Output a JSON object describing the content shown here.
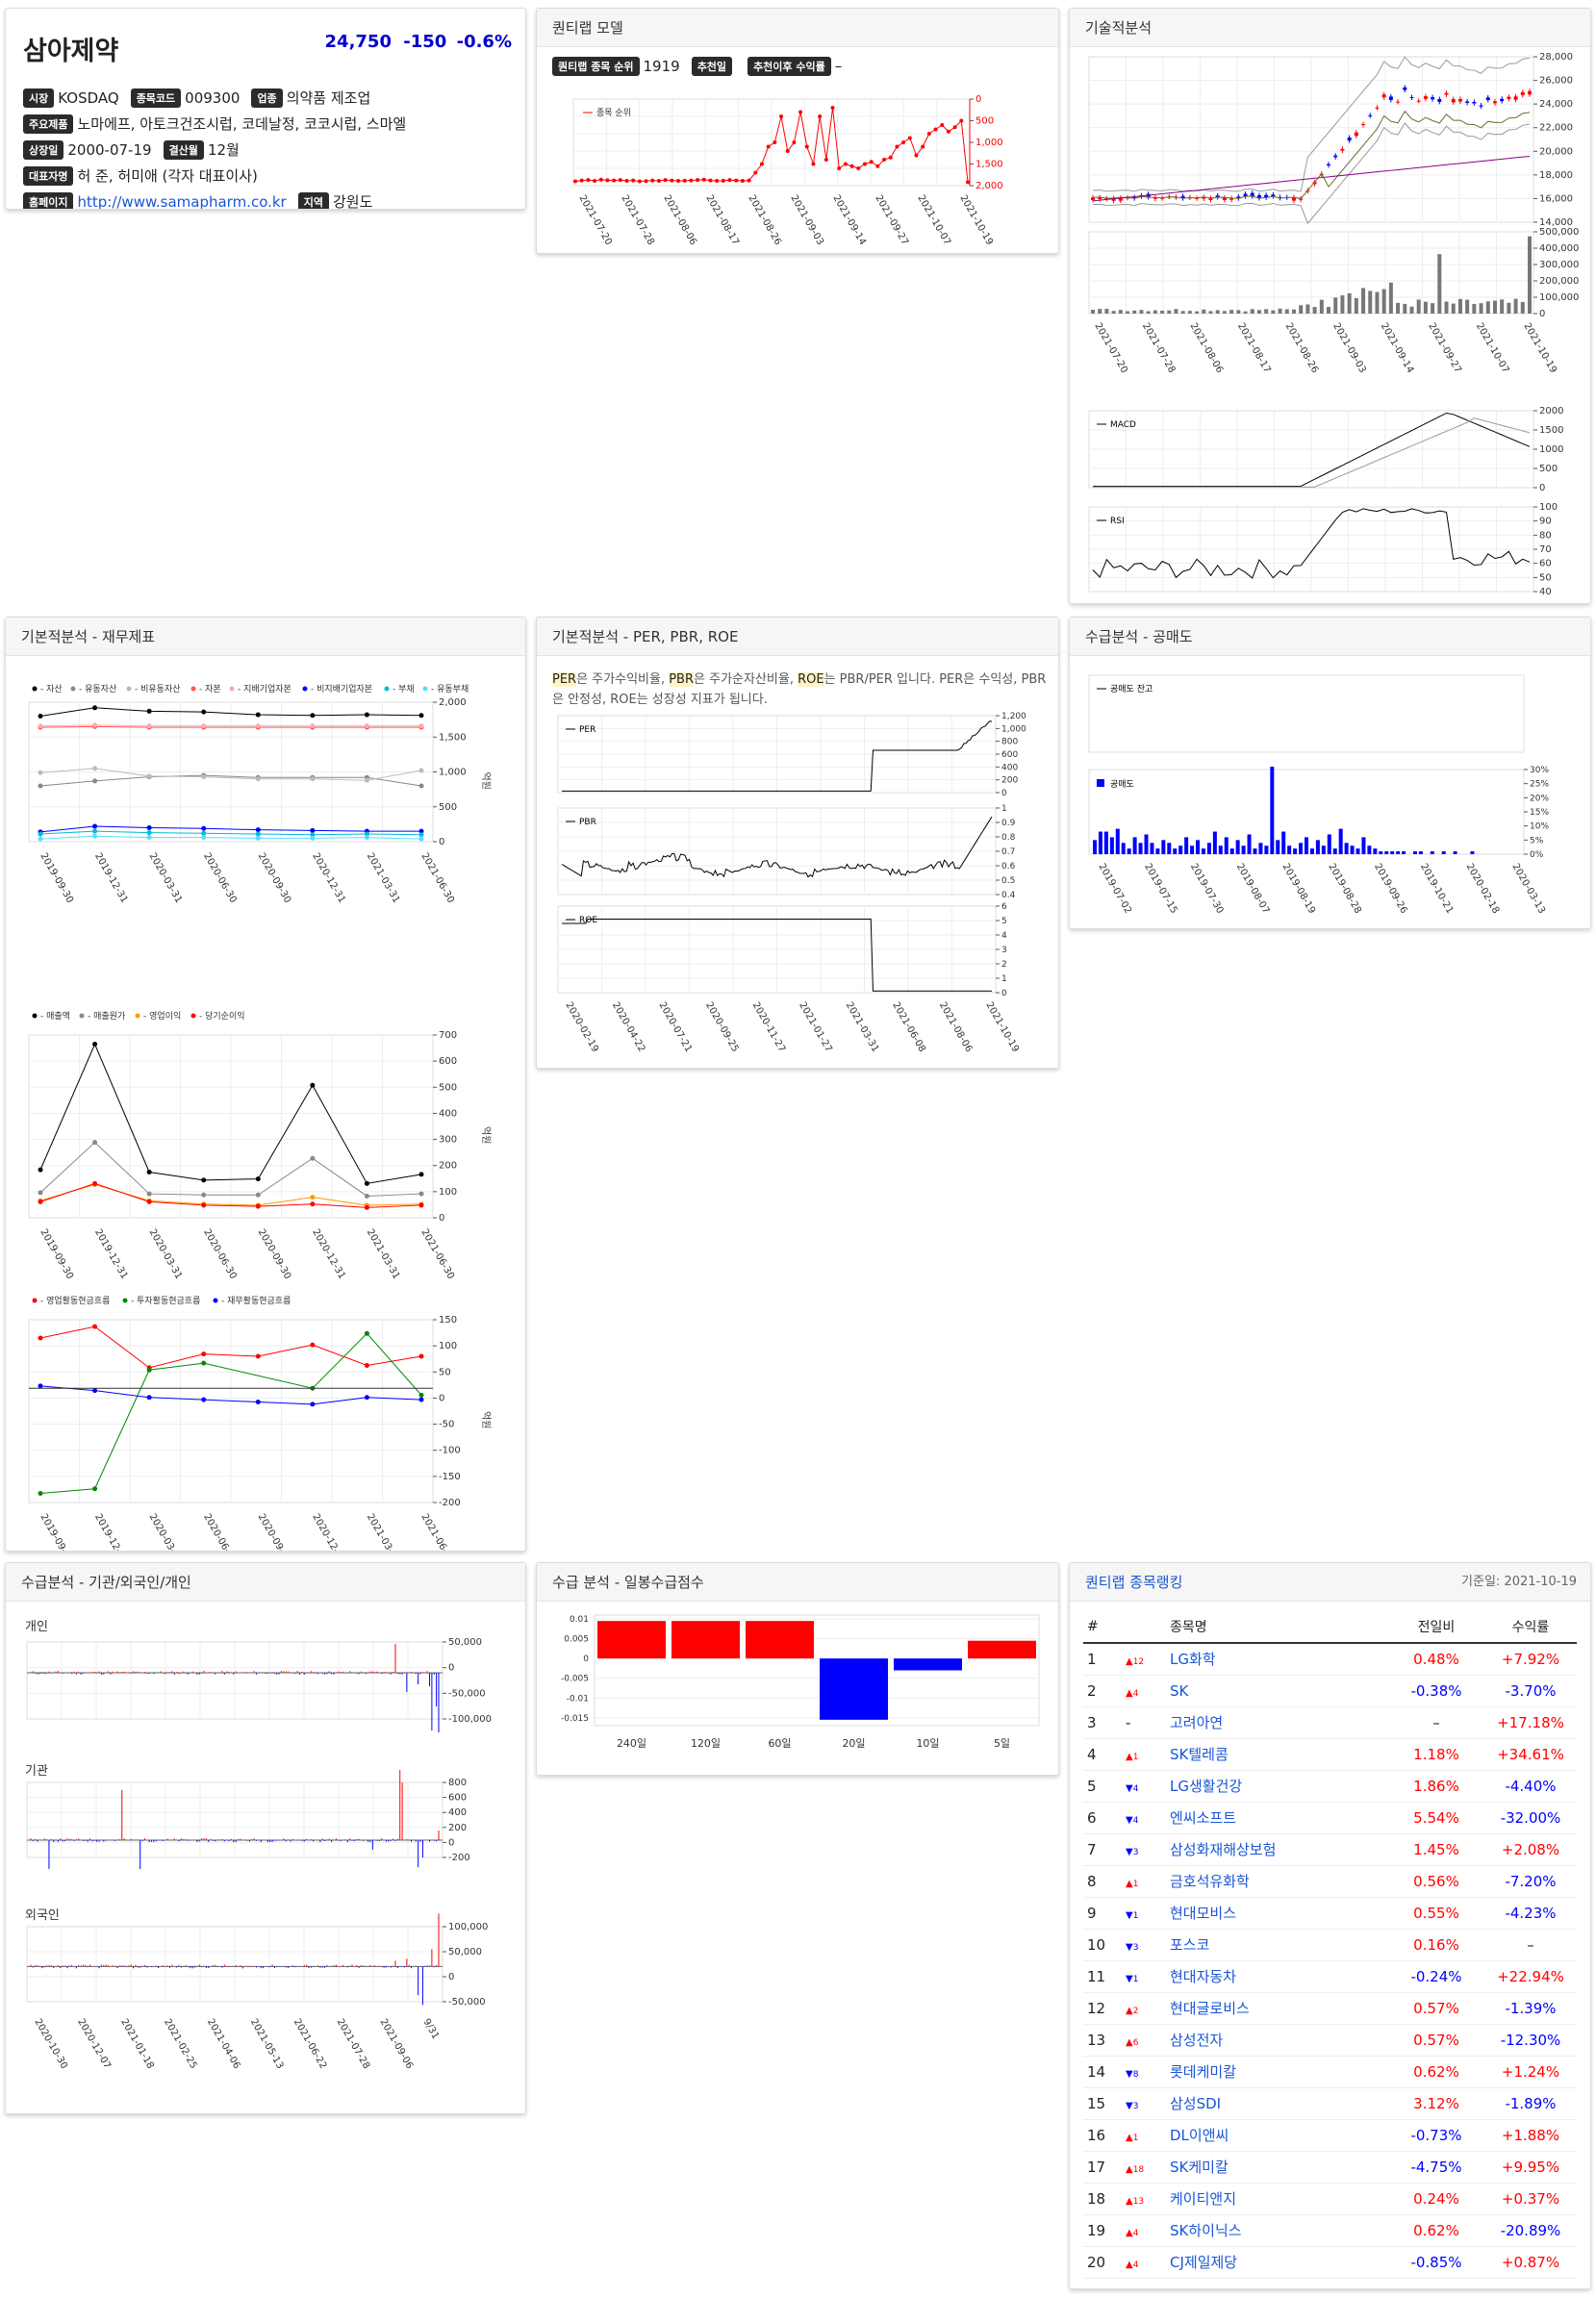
{
  "company": {
    "name": "삼아제약",
    "price": "24,750",
    "change": "-150",
    "change_pct": "-0.6%",
    "labels": {
      "market": "시장",
      "code": "종목코드",
      "industry": "업종",
      "products": "주요제품",
      "listed": "상장일",
      "fiscal": "결산월",
      "ceo": "대표자명",
      "homepage": "홈페이지",
      "region": "지역"
    },
    "market": "KOSDAQ",
    "code": "009300",
    "industry": "의약품 제조업",
    "products": "노마에프, 아토크건조시럽, 코데날정, 코코시럽, 스마엘",
    "listed": "2000-07-19",
    "fiscal": "12월",
    "ceo": "허 준, 허미애 (각자 대표이사)",
    "homepage": "http://www.samapharm.co.kr",
    "region": "강원도"
  },
  "quant": {
    "title": "퀀티랩 모델",
    "rank_label": "퀀티랩 종목 순위",
    "rank_value": "1919",
    "rec_date_label": "추천일",
    "rec_return_label": "추천이후 수익률",
    "rec_return_value": "–",
    "legend": "종목 순위",
    "chart_data": {
      "type": "line",
      "series": [
        {
          "name": "종목 순위",
          "values": [
            1900,
            1880,
            1870,
            1890,
            1860,
            1875,
            1880,
            1870,
            1890,
            1880,
            1900,
            1895,
            1880,
            1890,
            1870,
            1880,
            1890,
            1885,
            1880,
            1870,
            1860,
            1880,
            1890,
            1885,
            1870,
            1880,
            1890,
            1880,
            1700,
            1500,
            1100,
            1000,
            400,
            1200,
            1000,
            300,
            1100,
            1500,
            400,
            1400,
            200,
            1600,
            1500,
            1550,
            1600,
            1500,
            1450,
            1550,
            1400,
            1350,
            1100,
            1000,
            900,
            1300,
            1100,
            800,
            700,
            600,
            750,
            650,
            500,
            1919
          ]
        }
      ],
      "x_labels": [
        "2021-07-20",
        "2021-07-28",
        "2021-08-06",
        "2021-08-17",
        "2021-08-26",
        "2021-09-03",
        "2021-09-14",
        "2021-09-27",
        "2021-10-07",
        "2021-10-19"
      ],
      "y_ticks": [
        "0",
        "500",
        "1,000",
        "1,500",
        "2,000"
      ],
      "ylim": [
        0,
        2000
      ],
      "y_inverted": true
    }
  },
  "tech": {
    "title": "기술적분석",
    "price_ticks": [
      "28,000",
      "26,000",
      "24,000",
      "22,000",
      "20,000",
      "18,000",
      "16,000",
      "14,000"
    ],
    "vol_ticks": [
      "500,000",
      "400,000",
      "300,000",
      "200,000",
      "100,000",
      "0"
    ],
    "macd_label": "MACD",
    "macd_ticks": [
      "2000",
      "1500",
      "1000",
      "500",
      "0"
    ],
    "rsi_label": "RSI",
    "rsi_ticks": [
      "100",
      "90",
      "80",
      "70",
      "60",
      "50",
      "40"
    ],
    "x_labels": [
      "2021-07-20",
      "2021-07-28",
      "2021-08-06",
      "2021-08-17",
      "2021-08-26",
      "2021-09-03",
      "2021-09-14",
      "2021-09-27",
      "2021-10-07",
      "2021-10-19"
    ]
  },
  "fund": {
    "title": "기본적분석 - 재무제표",
    "unit": "억원",
    "x_labels": [
      "2019-09-30",
      "2019-12-31",
      "2020-03-31",
      "2020-06-30",
      "2020-09-30",
      "2020-12-31",
      "2021-03-31",
      "2021-06-30"
    ],
    "c1": {
      "legend": [
        {
          "name": "자산",
          "color": "#000000"
        },
        {
          "name": "유동자산",
          "color": "#888888"
        },
        {
          "name": "비유동자산",
          "color": "#bbbbbb"
        },
        {
          "name": "자본",
          "color": "#ff5555"
        },
        {
          "name": "지배기업자본",
          "color": "#ffaaaa"
        },
        {
          "name": "비지배기업자본",
          "color": "#0000ff"
        },
        {
          "name": "부채",
          "color": "#00bbdd"
        },
        {
          "name": "유동부채",
          "color": "#55ddff"
        }
      ],
      "y_ticks": [
        "2,000",
        "1,500",
        "1,000",
        "500",
        "0"
      ],
      "ylim": [
        0,
        2000
      ],
      "series": [
        {
          "name": "자산",
          "values": [
            1800,
            1920,
            1870,
            1860,
            1820,
            1810,
            1820,
            1810
          ]
        },
        {
          "name": "유동자산",
          "values": [
            800,
            870,
            930,
            950,
            920,
            920,
            920,
            800
          ]
        },
        {
          "name": "비유동자산",
          "values": [
            990,
            1050,
            940,
            930,
            900,
            900,
            880,
            1020
          ]
        },
        {
          "name": "자본",
          "values": [
            1640,
            1650,
            1640,
            1640,
            1640,
            1640,
            1640,
            1640
          ]
        },
        {
          "name": "지배기업자본",
          "values": [
            1660,
            1670,
            1660,
            1660,
            1660,
            1660,
            1660,
            1660
          ]
        },
        {
          "name": "비지배기업자본",
          "values": [
            140,
            220,
            200,
            190,
            170,
            160,
            150,
            150
          ]
        },
        {
          "name": "부채",
          "values": [
            110,
            150,
            130,
            120,
            110,
            100,
            110,
            100
          ]
        },
        {
          "name": "유동부채",
          "values": [
            40,
            80,
            60,
            60,
            50,
            50,
            60,
            40
          ]
        }
      ]
    },
    "c2": {
      "legend": [
        {
          "name": "매출액",
          "color": "#000000"
        },
        {
          "name": "매출원가",
          "color": "#888888"
        },
        {
          "name": "영업이익",
          "color": "#ff9900"
        },
        {
          "name": "당기순이익",
          "color": "#ff0000"
        }
      ],
      "y_ticks": [
        "700",
        "600",
        "500",
        "400",
        "300",
        "200",
        "100",
        "0"
      ],
      "ylim": [
        -50,
        750
      ],
      "series": [
        {
          "name": "매출액",
          "values": [
            160,
            710,
            150,
            115,
            120,
            530,
            100,
            140
          ]
        },
        {
          "name": "매출원가",
          "values": [
            60,
            280,
            55,
            50,
            50,
            210,
            45,
            55
          ]
        },
        {
          "name": "영업이익",
          "values": [
            25,
            95,
            25,
            10,
            5,
            40,
            5,
            10
          ]
        },
        {
          "name": "당기순이익",
          "values": [
            20,
            100,
            20,
            5,
            0,
            10,
            -5,
            5
          ]
        }
      ]
    },
    "c3": {
      "legend": [
        {
          "name": "영업활동현금흐름",
          "color": "#ff0000"
        },
        {
          "name": "투자활동현금흐름",
          "color": "#008800"
        },
        {
          "name": "재무활동현금흐름",
          "color": "#0000ff"
        }
      ],
      "y_ticks": [
        "150",
        "100",
        "50",
        "0",
        "-50",
        "-100",
        "-150",
        "-200"
      ],
      "ylim": [
        -250,
        150
      ],
      "series": [
        {
          "name": "영업활동현금흐름",
          "values": [
            110,
            135,
            45,
            75,
            70,
            95,
            50,
            70
          ]
        },
        {
          "name": "투자활동현금흐름",
          "values": [
            -230,
            -220,
            40,
            55,
            null,
            0,
            120,
            -15
          ]
        },
        {
          "name": "재무활동현금흐름",
          "values": [
            5,
            -5,
            -20,
            -25,
            -30,
            -35,
            -20,
            -25
          ]
        }
      ]
    }
  },
  "valuation": {
    "title": "기본적분석 - PER, PBR, ROE",
    "desc": [
      {
        "k": "PER"
      },
      {
        "t": "은 주가수익비율, "
      },
      {
        "k": "PBR"
      },
      {
        "t": "은 주가순자산비율, "
      },
      {
        "k": "ROE"
      },
      {
        "t": "는 PBR/PER 입니다. PER은 수익성, PBR은 안정성, ROE는 성장성 지표가 됩니다."
      }
    ],
    "per": {
      "label": "PER",
      "ticks": [
        "1,200",
        "1,000",
        "800",
        "600",
        "400",
        "200",
        "0"
      ]
    },
    "pbr": {
      "label": "PBR",
      "ticks": [
        "1",
        "0.9",
        "0.8",
        "0.7",
        "0.6",
        "0.5",
        "0.4"
      ]
    },
    "roe": {
      "label": "ROE",
      "ticks": [
        "6",
        "5",
        "4",
        "3",
        "2",
        "1",
        "0"
      ]
    },
    "x_labels": [
      "2020-02-19",
      "2020-04-22",
      "2020-07-21",
      "2020-09-25",
      "2020-11-27",
      "2021-01-27",
      "2021-03-31",
      "2021-06-08",
      "2021-08-06",
      "2021-10-19"
    ]
  },
  "short": {
    "title": "수급분석 - 공매도",
    "balance_label": "공매도 잔고",
    "sell_label": "공매도",
    "ticks": [
      "30%",
      "25%",
      "20%",
      "15%",
      "10%",
      "5%",
      "0%"
    ],
    "x_labels": [
      "2019-07-02",
      "2019-07-15",
      "2019-07-30",
      "2019-08-07",
      "2019-08-19",
      "2019-08-28",
      "2019-09-26",
      "2019-10-21",
      "2020-02-18",
      "2020-03-13"
    ],
    "chart_data": {
      "type": "bar",
      "values": [
        5,
        8,
        8,
        6,
        9,
        4,
        2,
        6,
        4,
        7,
        4,
        2,
        5,
        4,
        2,
        3,
        6,
        3,
        5,
        2,
        4,
        8,
        3,
        6,
        2,
        5,
        3,
        7,
        2,
        4,
        3,
        31,
        5,
        8,
        3,
        2,
        4,
        6,
        2,
        5,
        3,
        7,
        2,
        9,
        4,
        3,
        2,
        6,
        3,
        2,
        1,
        1,
        1,
        1,
        1,
        0,
        1,
        1,
        0,
        1,
        0,
        1,
        0,
        1,
        0,
        0,
        1,
        0,
        0,
        0,
        0,
        0,
        0,
        0,
        0
      ]
    }
  },
  "flow": {
    "title": "수급분석 - 기관/외국인/개인",
    "indiv": "개인",
    "inst": "기관",
    "foreign": "외국인",
    "indiv_ticks": [
      "50,000",
      "0",
      "-50,000",
      "-100,000"
    ],
    "inst_ticks": [
      "800",
      "600",
      "400",
      "200",
      "0",
      "-200"
    ],
    "foreign_ticks": [
      "100,000",
      "50,000",
      "0",
      "-50,000"
    ],
    "x_labels": [
      "2020-10-30",
      "2020-12-07",
      "2021-01-18",
      "2021-02-25",
      "2021-04-06",
      "2021-05-13",
      "2021-06-22",
      "2021-07-28",
      "2021-09-06",
      "9/31"
    ]
  },
  "daily": {
    "title": "수급 분석 - 일봉수급점수",
    "ticks": [
      "0.01",
      "0.005",
      "0",
      "-0.005",
      "-0.01",
      "-0.015"
    ],
    "chart_data": {
      "type": "bar",
      "categories": [
        "240일",
        "120일",
        "60일",
        "20일",
        "10일",
        "5일"
      ],
      "values": [
        0.0095,
        0.0095,
        0.0095,
        -0.0155,
        -0.003,
        0.0045
      ],
      "ylim": [
        -0.017,
        0.011
      ]
    }
  },
  "ranking": {
    "title": "퀀티랩 종목랭킹",
    "date_label": "기준일: 2021-10-19",
    "headers": [
      "#",
      "",
      "종목명",
      "전일비",
      "수익률"
    ],
    "rows": [
      {
        "n": "1",
        "dir": "up",
        "d": "12",
        "name": "LG화학",
        "chg": "0.48%",
        "ret": "+7.92%"
      },
      {
        "n": "2",
        "dir": "up",
        "d": "4",
        "name": "SK",
        "chg": "-0.38%",
        "ret": "-3.70%"
      },
      {
        "n": "3",
        "dir": "none",
        "d": "-",
        "name": "고려아연",
        "chg": "–",
        "ret": "+17.18%"
      },
      {
        "n": "4",
        "dir": "up",
        "d": "1",
        "name": "SK텔레콤",
        "chg": "1.18%",
        "ret": "+34.61%"
      },
      {
        "n": "5",
        "dir": "down",
        "d": "4",
        "name": "LG생활건강",
        "chg": "1.86%",
        "ret": "-4.40%"
      },
      {
        "n": "6",
        "dir": "down",
        "d": "4",
        "name": "엔씨소프트",
        "chg": "5.54%",
        "ret": "-32.00%"
      },
      {
        "n": "7",
        "dir": "down",
        "d": "3",
        "name": "삼성화재해상보험",
        "chg": "1.45%",
        "ret": "+2.08%"
      },
      {
        "n": "8",
        "dir": "up",
        "d": "1",
        "name": "금호석유화학",
        "chg": "0.56%",
        "ret": "-7.20%"
      },
      {
        "n": "9",
        "dir": "down",
        "d": "1",
        "name": "현대모비스",
        "chg": "0.55%",
        "ret": "-4.23%"
      },
      {
        "n": "10",
        "dir": "down",
        "d": "3",
        "name": "포스코",
        "chg": "0.16%",
        "ret": "–"
      },
      {
        "n": "11",
        "dir": "down",
        "d": "1",
        "name": "현대자동차",
        "chg": "-0.24%",
        "ret": "+22.94%"
      },
      {
        "n": "12",
        "dir": "up",
        "d": "2",
        "name": "현대글로비스",
        "chg": "0.57%",
        "ret": "-1.39%"
      },
      {
        "n": "13",
        "dir": "up",
        "d": "6",
        "name": "삼성전자",
        "chg": "0.57%",
        "ret": "-12.30%"
      },
      {
        "n": "14",
        "dir": "down",
        "d": "8",
        "name": "롯데케미칼",
        "chg": "0.62%",
        "ret": "+1.24%"
      },
      {
        "n": "15",
        "dir": "down",
        "d": "3",
        "name": "삼성SDI",
        "chg": "3.12%",
        "ret": "-1.89%"
      },
      {
        "n": "16",
        "dir": "up",
        "d": "1",
        "name": "DL이앤씨",
        "chg": "-0.73%",
        "ret": "+1.88%"
      },
      {
        "n": "17",
        "dir": "up",
        "d": "18",
        "name": "SK케미칼",
        "chg": "-4.75%",
        "ret": "+9.95%"
      },
      {
        "n": "18",
        "dir": "up",
        "d": "13",
        "name": "케이티앤지",
        "chg": "0.24%",
        "ret": "+0.37%"
      },
      {
        "n": "19",
        "dir": "up",
        "d": "4",
        "name": "SK하이닉스",
        "chg": "0.62%",
        "ret": "-20.89%"
      },
      {
        "n": "20",
        "dir": "up",
        "d": "4",
        "name": "CJ제일제당",
        "chg": "-0.85%",
        "ret": "+0.87%"
      }
    ]
  },
  "colors": {
    "up": "#ff0000",
    "down": "#0000ff",
    "link": "#1a55d6"
  }
}
